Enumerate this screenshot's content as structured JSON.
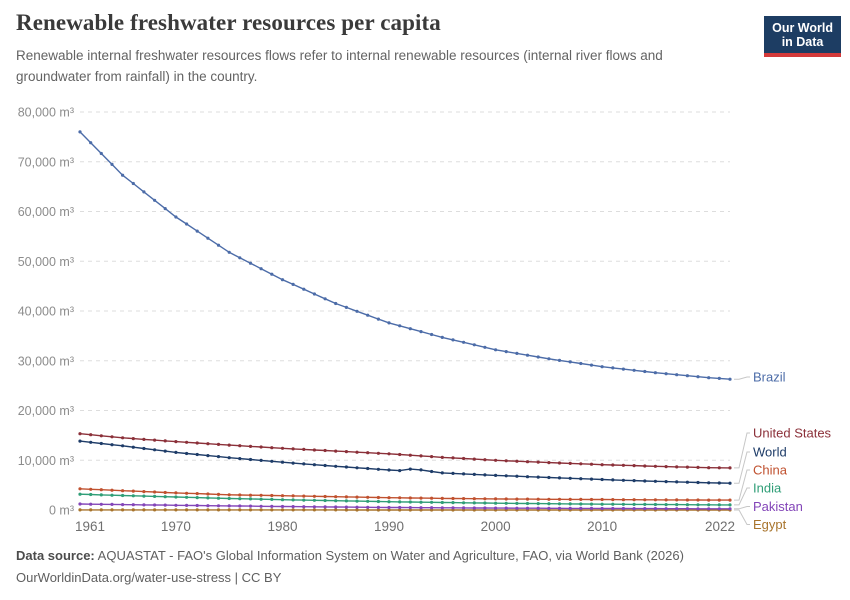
{
  "header": {
    "title": "Renewable freshwater resources per capita",
    "subtitle": "Renewable internal freshwater resources flows refer to internal renewable resources (internal river flows and groundwater from rainfall) in the country.",
    "logo": {
      "line1": "Our World",
      "line2": "in Data",
      "background": "#1d3d63",
      "accent": "#d43a3a"
    }
  },
  "footer": {
    "source_label": "Data source:",
    "source_text": "AQUASTAT - FAO's Global Information System on Water and Agriculture, FAO, via World Bank (2026)",
    "license_text": "OurWorldinData.org/water-use-stress | CC BY"
  },
  "chart_data": {
    "type": "line",
    "title": "Renewable freshwater resources per capita",
    "unit": "m³",
    "xlabel": "",
    "ylabel": "",
    "ylim": [
      0,
      80000
    ],
    "grid": "dashed-horizontal",
    "legend_position": "right-end-labels",
    "marker": "circle",
    "x_ticks": [
      1961,
      1970,
      1980,
      1990,
      2000,
      2010,
      2022
    ],
    "y_ticks": [
      0,
      10000,
      20000,
      30000,
      40000,
      50000,
      60000,
      70000,
      80000
    ],
    "x": [
      1961,
      1962,
      1963,
      1964,
      1965,
      1966,
      1967,
      1968,
      1969,
      1970,
      1971,
      1972,
      1973,
      1974,
      1975,
      1976,
      1977,
      1978,
      1979,
      1980,
      1981,
      1982,
      1983,
      1984,
      1985,
      1986,
      1987,
      1988,
      1989,
      1990,
      1991,
      1992,
      1993,
      1994,
      1995,
      1996,
      1997,
      1998,
      1999,
      2000,
      2001,
      2002,
      2003,
      2004,
      2005,
      2006,
      2007,
      2008,
      2009,
      2010,
      2011,
      2012,
      2013,
      2014,
      2015,
      2016,
      2017,
      2018,
      2019,
      2020,
      2021,
      2022
    ],
    "series": [
      {
        "name": "Brazil",
        "color": "#4C6CA8",
        "values": [
          76000,
          73825,
          71650,
          69475,
          67300,
          65620,
          63940,
          62260,
          60580,
          58900,
          57480,
          56060,
          54640,
          53220,
          51800,
          50700,
          49600,
          48500,
          47400,
          46300,
          45340,
          44380,
          43420,
          42460,
          41500,
          40720,
          39940,
          39160,
          38380,
          37600,
          37020,
          36440,
          35860,
          35280,
          34700,
          34200,
          33700,
          33200,
          32700,
          32200,
          31840,
          31480,
          31120,
          30760,
          30400,
          30080,
          29760,
          29440,
          29120,
          28800,
          28560,
          28320,
          28080,
          27840,
          27600,
          27400,
          27200,
          27000,
          26800,
          26600,
          26450,
          26300
        ]
      },
      {
        "name": "United States",
        "color": "#8B3039",
        "values": [
          15340,
          15131,
          14922,
          14712,
          14503,
          14350,
          14198,
          14045,
          13893,
          13740,
          13601,
          13462,
          13324,
          13185,
          13046,
          12917,
          12789,
          12660,
          12532,
          12403,
          12291,
          12180,
          12068,
          11957,
          11845,
          11734,
          11623,
          11512,
          11401,
          11290,
          11148,
          11007,
          10865,
          10724,
          10582,
          10463,
          10344,
          10224,
          10105,
          9986,
          9896,
          9806,
          9716,
          9626,
          9536,
          9451,
          9366,
          9281,
          9196,
          9111,
          9046,
          8981,
          8917,
          8852,
          8787,
          8730,
          8673,
          8615,
          8558,
          8501,
          8478,
          8455
        ]
      },
      {
        "name": "World",
        "color": "#1E3C68",
        "values": [
          13854,
          13614,
          13374,
          13135,
          12895,
          12630,
          12365,
          12100,
          11835,
          11570,
          11360,
          11149,
          10939,
          10728,
          10518,
          10334,
          10150,
          9967,
          9783,
          9599,
          9437,
          9275,
          9114,
          8952,
          8790,
          8638,
          8487,
          8335,
          8184,
          8032,
          7920,
          8230,
          8060,
          7740,
          7458,
          7359,
          7259,
          7160,
          7060,
          6961,
          6874,
          6787,
          6700,
          6613,
          6526,
          6446,
          6365,
          6285,
          6204,
          6124,
          6052,
          5979,
          5907,
          5834,
          5762,
          5702,
          5641,
          5581,
          5520,
          5460,
          5423,
          5385
        ]
      },
      {
        "name": "China",
        "color": "#C0512F",
        "values": [
          4262,
          4167,
          4071,
          3976,
          3880,
          3792,
          3704,
          3615,
          3527,
          3439,
          3363,
          3287,
          3212,
          3136,
          3060,
          3022,
          2983,
          2945,
          2906,
          2868,
          2827,
          2786,
          2746,
          2705,
          2664,
          2627,
          2590,
          2552,
          2515,
          2478,
          2449,
          2420,
          2391,
          2362,
          2333,
          2312,
          2291,
          2269,
          2248,
          2227,
          2213,
          2198,
          2184,
          2169,
          2155,
          2145,
          2134,
          2124,
          2113,
          2103,
          2091,
          2080,
          2068,
          2057,
          2045,
          2035,
          2025,
          2016,
          2006,
          1996,
          1994,
          1992
        ]
      },
      {
        "name": "India",
        "color": "#2F9E77",
        "values": [
          3171,
          3108,
          3045,
          2983,
          2920,
          2857,
          2794,
          2731,
          2668,
          2605,
          2548,
          2491,
          2434,
          2377,
          2320,
          2272,
          2223,
          2175,
          2126,
          2078,
          2034,
          1991,
          1947,
          1904,
          1860,
          1820,
          1781,
          1741,
          1702,
          1662,
          1631,
          1600,
          1569,
          1538,
          1507,
          1479,
          1452,
          1424,
          1397,
          1369,
          1348,
          1327,
          1306,
          1285,
          1263,
          1245,
          1227,
          1209,
          1191,
          1172,
          1158,
          1145,
          1131,
          1118,
          1104,
          1090,
          1077,
          1063,
          1050,
          1036,
          1028,
          1020
        ]
      },
      {
        "name": "Pakistan",
        "color": "#8345B8",
        "values": [
          1203,
          1175,
          1147,
          1118,
          1090,
          1061,
          1033,
          1004,
          976,
          947,
          922,
          896,
          871,
          845,
          820,
          797,
          774,
          750,
          727,
          704,
          683,
          662,
          642,
          621,
          600,
          582,
          564,
          547,
          529,
          511,
          498,
          485,
          471,
          458,
          445,
          433,
          422,
          410,
          399,
          387,
          378,
          369,
          361,
          352,
          343,
          336,
          329,
          321,
          314,
          307,
          300,
          293,
          286,
          279,
          272,
          266,
          260,
          255,
          249,
          243,
          238,
          233
        ]
      },
      {
        "name": "Egypt",
        "color": "#A8742C",
        "values": [
          18,
          17.6,
          17.2,
          16.8,
          16.4,
          16,
          15.7,
          15.3,
          15,
          14.7,
          14.4,
          14.1,
          13.8,
          13.5,
          13.2,
          12.9,
          12.6,
          12.3,
          12,
          11.7,
          11.4,
          11.1,
          10.8,
          10.6,
          10.3,
          10,
          9.8,
          9.5,
          9.3,
          9,
          8.8,
          8.6,
          8.4,
          8.2,
          8,
          7.8,
          7.6,
          7.4,
          7.2,
          7,
          6.9,
          6.7,
          6.6,
          6.4,
          6.3,
          6.2,
          6,
          5.9,
          5.8,
          5.7,
          5.6,
          5.5,
          5.4,
          5.3,
          5.1,
          5,
          4.9,
          4.8,
          4.7,
          4.6,
          4.55,
          4.5
        ]
      }
    ]
  }
}
